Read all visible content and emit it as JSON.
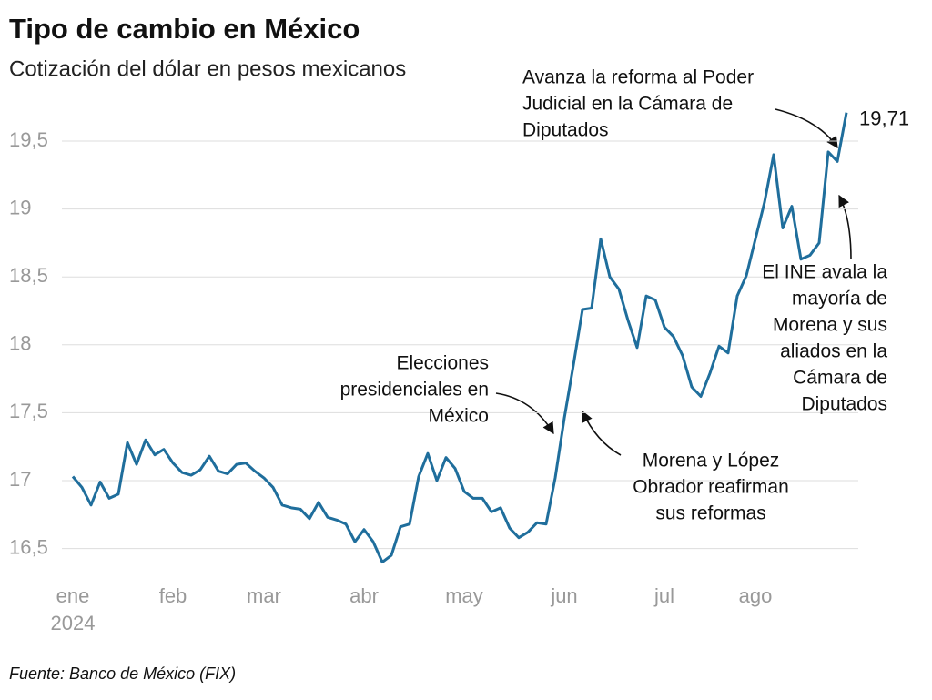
{
  "chart_data": {
    "type": "line",
    "title": "Tipo de cambio en México",
    "subtitle": "Cotización del dólar en pesos mexicanos",
    "source": "Fuente: Banco de México (FIX)",
    "year": "2024",
    "categories": [
      "ene",
      null,
      null,
      null,
      null,
      null,
      null,
      null,
      null,
      null,
      null,
      "feb",
      null,
      null,
      null,
      null,
      null,
      null,
      null,
      null,
      null,
      "mar",
      null,
      null,
      null,
      null,
      null,
      null,
      null,
      null,
      null,
      null,
      "abr",
      null,
      null,
      null,
      null,
      null,
      null,
      null,
      null,
      null,
      null,
      "may",
      null,
      null,
      null,
      null,
      null,
      null,
      null,
      null,
      null,
      null,
      "jun",
      null,
      null,
      null,
      null,
      null,
      null,
      null,
      null,
      null,
      null,
      "jul",
      null,
      null,
      null,
      null,
      null,
      null,
      null,
      null,
      null,
      "ago",
      null,
      null,
      null,
      null,
      null,
      null,
      null,
      null,
      null,
      null
    ],
    "series": [
      {
        "name": "Tipo de cambio",
        "color": "#1f6e9c",
        "values": [
          17.03,
          16.95,
          16.82,
          16.99,
          16.87,
          16.9,
          17.28,
          17.12,
          17.3,
          17.19,
          17.23,
          17.13,
          17.06,
          17.04,
          17.08,
          17.18,
          17.07,
          17.05,
          17.12,
          17.13,
          17.07,
          17.02,
          16.95,
          16.82,
          16.8,
          16.79,
          16.72,
          16.84,
          16.73,
          16.71,
          16.68,
          16.55,
          16.64,
          16.55,
          16.4,
          16.45,
          16.66,
          16.68,
          17.03,
          17.2,
          17.0,
          17.17,
          17.09,
          16.92,
          16.87,
          16.87,
          16.77,
          16.8,
          16.65,
          16.58,
          16.62,
          16.69,
          16.68,
          17.02,
          17.46,
          17.85,
          18.26,
          18.27,
          18.78,
          18.5,
          18.41,
          18.18,
          17.98,
          18.36,
          18.33,
          18.13,
          18.06,
          17.92,
          17.69,
          17.62,
          17.79,
          17.99,
          17.94,
          18.36,
          18.51,
          18.78,
          19.05,
          19.4,
          18.86,
          19.02,
          18.63,
          18.66,
          18.75,
          19.42,
          19.35,
          19.71
        ],
        "end_label": "19,71"
      }
    ],
    "ylim": [
      16.3,
      19.75
    ],
    "yticks": [
      {
        "value": 16.5,
        "label": "16,5"
      },
      17,
      {
        "value": 17.5,
        "label": "17,5"
      },
      18,
      {
        "value": 18.5,
        "label": "18,5"
      },
      19,
      {
        "value": 19.5,
        "label": "19,5"
      }
    ],
    "grid": true,
    "annotations": [
      {
        "lines": [
          "Avanza la reforma al Poder",
          "Judicial en la Cámara de",
          "Diputados"
        ]
      },
      {
        "lines": [
          "El INE avala la",
          "mayoría de",
          "Morena y sus",
          "aliados en la",
          "Cámara de",
          "Diputados"
        ]
      },
      {
        "lines": [
          "Elecciones",
          "presidenciales en",
          "México"
        ]
      },
      {
        "lines": [
          "Morena y López",
          "Obrador reafirman",
          "sus reformas"
        ]
      }
    ]
  }
}
